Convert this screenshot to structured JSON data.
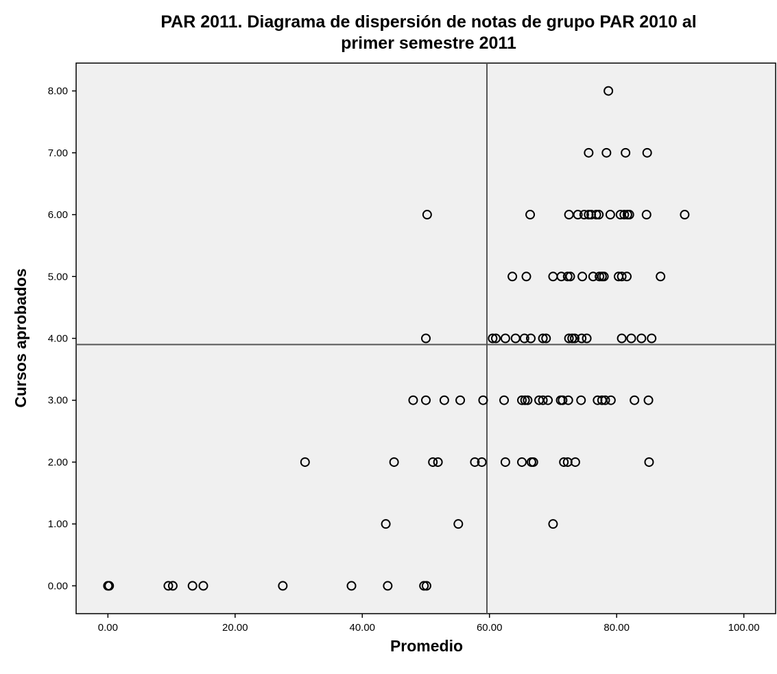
{
  "chart_data": {
    "type": "scatter",
    "title_lines": [
      "PAR 2011. Diagrama de dispersión de notas de grupo PAR 2010 al",
      "primer semestre 2011"
    ],
    "xlabel": "Promedio",
    "ylabel": "Cursos aprobados",
    "xlim": [
      -5,
      105
    ],
    "ylim": [
      -0.45,
      8.45
    ],
    "xticks": [
      0,
      20,
      40,
      60,
      80,
      100
    ],
    "xtick_labels": [
      "0.00",
      "20.00",
      "40.00",
      "60.00",
      "80.00",
      "100.00"
    ],
    "yticks": [
      0,
      1,
      2,
      3,
      4,
      5,
      6,
      7,
      8
    ],
    "ytick_labels": [
      "0.00",
      "1.00",
      "2.00",
      "3.00",
      "4.00",
      "5.00",
      "6.00",
      "7.00",
      "8.00"
    ],
    "reference_lines": {
      "x": 59.6,
      "y": 3.9
    },
    "grid": false,
    "colors": {
      "plot_background": "#f0f0f0",
      "marker_stroke": "#000000",
      "reference_line": "#555555"
    },
    "points": [
      [
        0,
        0
      ],
      [
        0.2,
        0
      ],
      [
        9.5,
        0
      ],
      [
        10.2,
        0
      ],
      [
        13.3,
        0
      ],
      [
        15,
        0
      ],
      [
        27.5,
        0
      ],
      [
        38.3,
        0
      ],
      [
        44,
        0
      ],
      [
        49.7,
        0
      ],
      [
        50.1,
        0
      ],
      [
        43.7,
        1
      ],
      [
        55.1,
        1
      ],
      [
        70,
        1
      ],
      [
        31,
        2
      ],
      [
        45,
        2
      ],
      [
        51.1,
        2
      ],
      [
        51.9,
        2
      ],
      [
        57.7,
        2
      ],
      [
        58.8,
        2
      ],
      [
        62.5,
        2
      ],
      [
        65.1,
        2
      ],
      [
        66.6,
        2
      ],
      [
        66.9,
        2
      ],
      [
        71.7,
        2
      ],
      [
        72.3,
        2
      ],
      [
        73.5,
        2
      ],
      [
        85.1,
        2
      ],
      [
        48,
        3
      ],
      [
        50,
        3
      ],
      [
        52.9,
        3
      ],
      [
        55.4,
        3
      ],
      [
        59,
        3
      ],
      [
        62.3,
        3
      ],
      [
        65.1,
        3
      ],
      [
        65.6,
        3
      ],
      [
        66,
        3
      ],
      [
        67.8,
        3
      ],
      [
        68.4,
        3
      ],
      [
        69.2,
        3
      ],
      [
        71.2,
        3
      ],
      [
        71.5,
        3
      ],
      [
        72.4,
        3
      ],
      [
        74.4,
        3
      ],
      [
        77,
        3
      ],
      [
        77.7,
        3
      ],
      [
        78.2,
        3
      ],
      [
        79.1,
        3
      ],
      [
        82.8,
        3
      ],
      [
        85,
        3
      ],
      [
        50,
        4
      ],
      [
        60.5,
        4
      ],
      [
        61,
        4
      ],
      [
        62.5,
        4
      ],
      [
        64.1,
        4
      ],
      [
        65.5,
        4
      ],
      [
        66.5,
        4
      ],
      [
        68.4,
        4
      ],
      [
        68.9,
        4
      ],
      [
        72.5,
        4
      ],
      [
        73,
        4
      ],
      [
        73.4,
        4
      ],
      [
        74.5,
        4
      ],
      [
        75.3,
        4
      ],
      [
        80.8,
        4
      ],
      [
        82.3,
        4
      ],
      [
        83.9,
        4
      ],
      [
        85.5,
        4
      ],
      [
        63.6,
        5
      ],
      [
        65.8,
        5
      ],
      [
        70,
        5
      ],
      [
        71.3,
        5
      ],
      [
        72.3,
        5
      ],
      [
        72.7,
        5
      ],
      [
        74.6,
        5
      ],
      [
        76.3,
        5
      ],
      [
        77.3,
        5
      ],
      [
        77.7,
        5
      ],
      [
        78,
        5
      ],
      [
        80.3,
        5
      ],
      [
        80.8,
        5
      ],
      [
        81.6,
        5
      ],
      [
        86.9,
        5
      ],
      [
        50.2,
        6
      ],
      [
        66.4,
        6
      ],
      [
        72.5,
        6
      ],
      [
        73.9,
        6
      ],
      [
        74.9,
        6
      ],
      [
        75.6,
        6
      ],
      [
        76,
        6
      ],
      [
        76.8,
        6
      ],
      [
        77.2,
        6
      ],
      [
        79,
        6
      ],
      [
        80.6,
        6
      ],
      [
        81.2,
        6
      ],
      [
        81.7,
        6
      ],
      [
        82,
        6
      ],
      [
        84.7,
        6
      ],
      [
        90.7,
        6
      ],
      [
        75.6,
        7
      ],
      [
        78.4,
        7
      ],
      [
        81.4,
        7
      ],
      [
        84.8,
        7
      ],
      [
        78.7,
        8
      ]
    ]
  }
}
